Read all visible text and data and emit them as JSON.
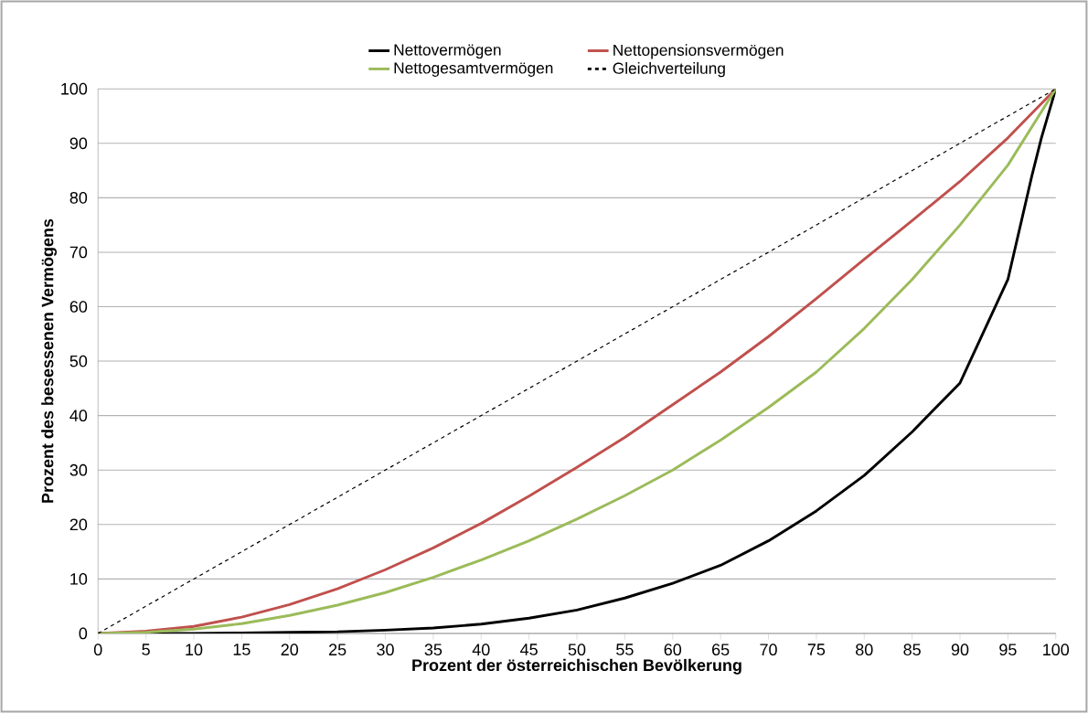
{
  "chart_data": {
    "type": "line",
    "xlabel": "Prozent der österreichischen Bevölkerung",
    "ylabel": "Prozent des besessenen Vermögens",
    "x": [
      0,
      5,
      10,
      15,
      20,
      25,
      30,
      35,
      40,
      45,
      50,
      55,
      60,
      65,
      70,
      75,
      80,
      85,
      90,
      95,
      97.5,
      98.5,
      100
    ],
    "series": [
      {
        "name": "Nettovermögen",
        "color": "#000000",
        "line_style": "solid",
        "values": [
          0,
          0,
          0,
          0.1,
          0.2,
          0.3,
          0.6,
          1,
          1.7,
          2.8,
          4.3,
          6.5,
          9.2,
          12.5,
          17,
          22.5,
          29,
          37,
          46,
          65,
          84,
          91,
          100
        ]
      },
      {
        "name": "Nettopensionsvermögen",
        "color": "#c0504d",
        "line_style": "solid",
        "x": [
          0,
          5,
          10,
          15,
          20,
          25,
          30,
          35,
          40,
          45,
          50,
          55,
          60,
          65,
          70,
          75,
          80,
          85,
          90,
          95,
          100
        ],
        "values": [
          0,
          0.4,
          1.3,
          3,
          5.3,
          8.2,
          11.7,
          15.7,
          20.2,
          25.2,
          30.5,
          36,
          42,
          48,
          54.5,
          61.5,
          68.7,
          75.8,
          83,
          91,
          100
        ]
      },
      {
        "name": "Nettogesamtvermögen",
        "color": "#9bbb59",
        "line_style": "solid",
        "x": [
          0,
          5,
          10,
          15,
          20,
          25,
          30,
          35,
          40,
          45,
          50,
          55,
          60,
          65,
          70,
          75,
          80,
          85,
          90,
          95,
          100
        ],
        "values": [
          0,
          0.2,
          0.8,
          1.8,
          3.3,
          5.2,
          7.5,
          10.3,
          13.5,
          17,
          21,
          25.3,
          30,
          35.5,
          41.5,
          48,
          56,
          65,
          75,
          86,
          100
        ]
      },
      {
        "name": "Gleichverteilung",
        "color": "#000000",
        "line_style": "dashed",
        "x": [
          0,
          100
        ],
        "values": [
          0,
          100
        ]
      }
    ],
    "xlim": [
      0,
      100
    ],
    "xticks": [
      0,
      5,
      10,
      15,
      20,
      25,
      30,
      35,
      40,
      45,
      50,
      55,
      60,
      65,
      70,
      75,
      80,
      85,
      90,
      95,
      100
    ],
    "ylim": [
      0,
      100
    ],
    "yticks": [
      0,
      10,
      20,
      30,
      40,
      50,
      60,
      70,
      80,
      90,
      100
    ],
    "grid": "y",
    "legend": "top",
    "marker": "none"
  }
}
